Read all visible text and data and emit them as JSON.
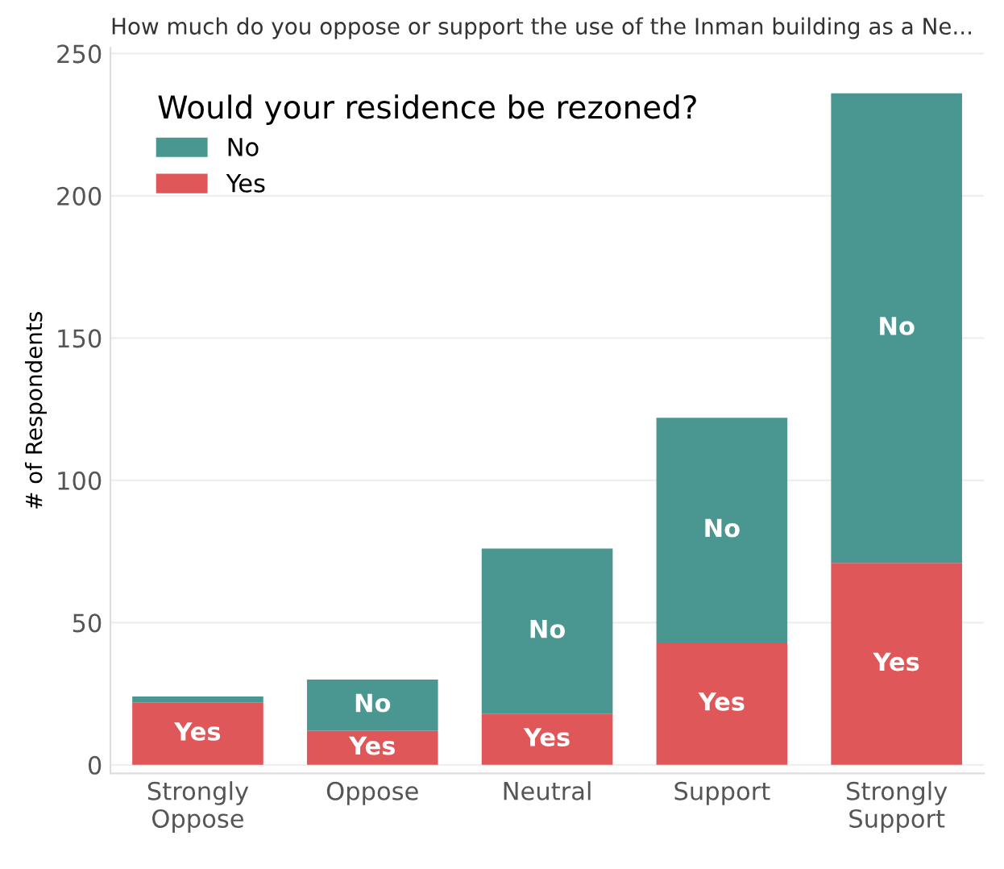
{
  "chart_data": {
    "type": "bar",
    "stacked": true,
    "title": "How much do you oppose or support the use of the Inman building as a Ne...",
    "ylabel": "# of Respondents",
    "legend_title": "Would your residence be rezoned?",
    "categories": [
      "Strongly\nOppose",
      "Oppose",
      "Neutral",
      "Support",
      "Strongly\nSupport"
    ],
    "series": [
      {
        "name": "Yes",
        "color": "#e05759",
        "values": [
          22,
          12,
          18,
          43,
          71
        ],
        "value_labels": [
          "Yes",
          "Yes",
          "Yes",
          "Yes",
          "Yes"
        ]
      },
      {
        "name": "No",
        "color": "#4a9690",
        "values": [
          2,
          18,
          58,
          79,
          165
        ],
        "value_labels": [
          null,
          "No",
          "No",
          "No",
          "No"
        ]
      }
    ],
    "ylim": [
      -3,
      252
    ],
    "yticks": [
      0,
      50,
      100,
      150,
      200,
      250
    ],
    "grid": "y",
    "legend": "top left"
  }
}
